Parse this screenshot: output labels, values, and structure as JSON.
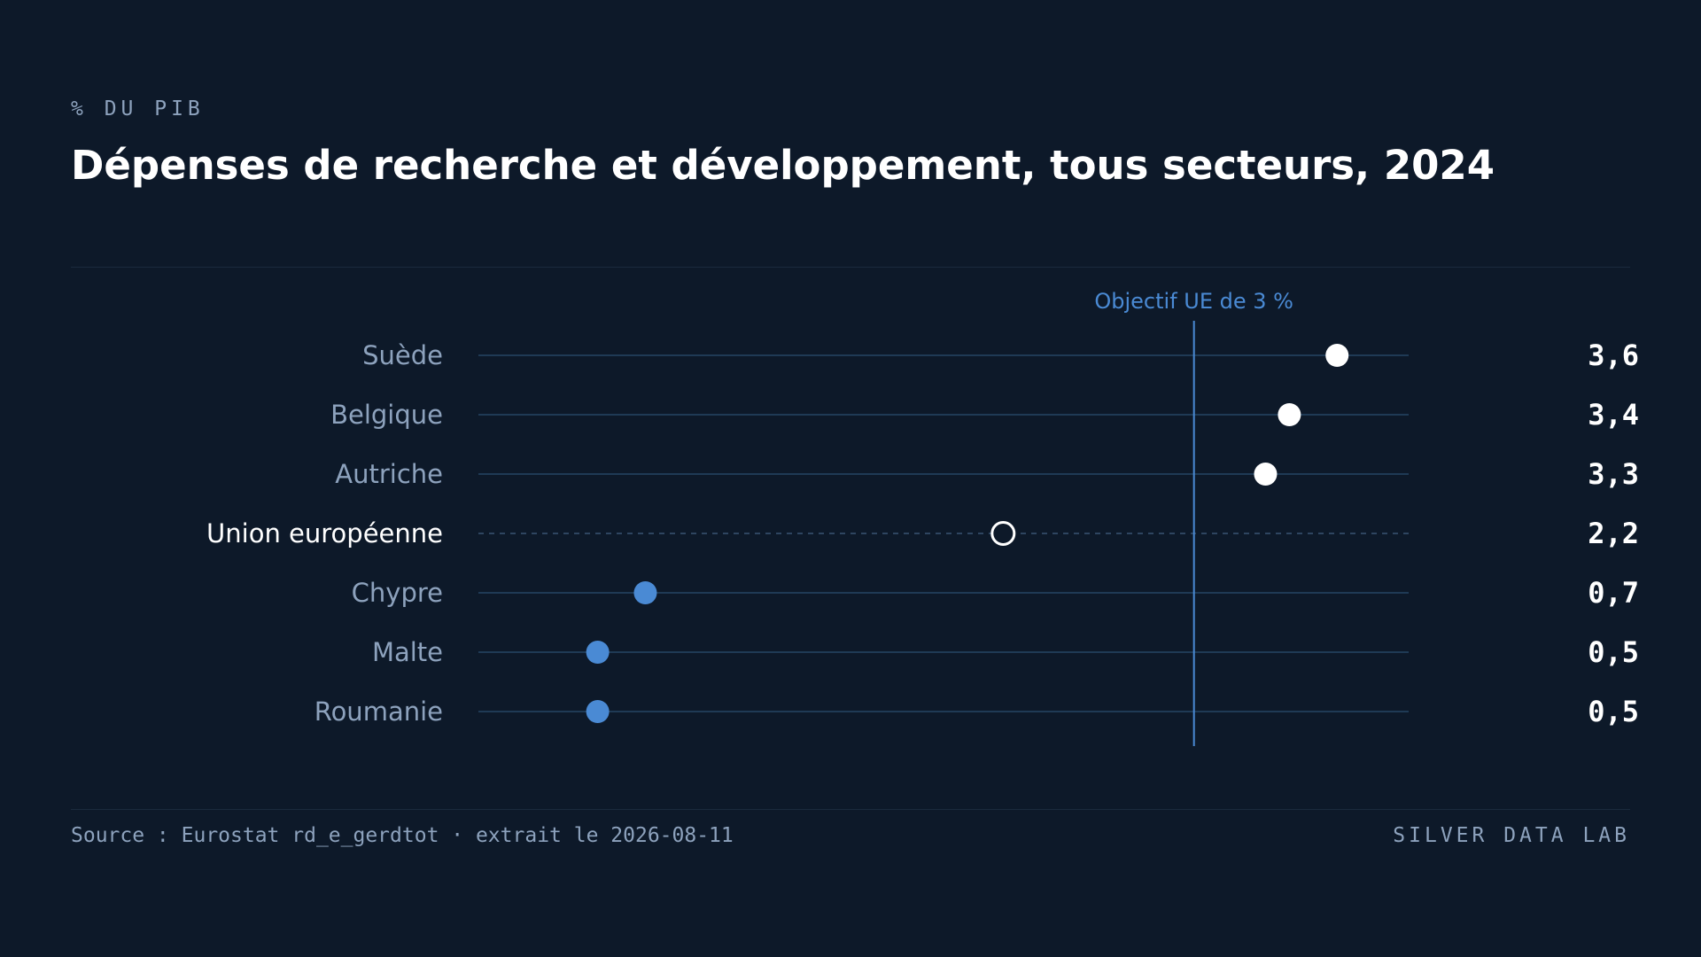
{
  "header": {
    "kicker": "% DU PIB",
    "title": "Dépenses de recherche et développement, tous secteurs, 2024"
  },
  "footer": {
    "source": "Source : Eurostat rd_e_gerdtot · extrait le 2026-08-11",
    "brand": "SILVER DATA LAB"
  },
  "colors": {
    "background": "#0d1929",
    "above_target": "#ffffff",
    "below_target": "#4a8ad4",
    "aggregate": "#ffffff",
    "target_line": "#4a8ad4",
    "row_line": "#1f3a55",
    "label": "#8da2bd",
    "label_highlight": "#ffffff"
  },
  "chart_data": {
    "type": "dot",
    "title": "Dépenses de recherche et développement, tous secteurs, 2024",
    "unit": "% du PIB",
    "xlim": [
      0,
      3.9
    ],
    "grid": false,
    "categories": [
      "Suède",
      "Belgique",
      "Autriche",
      "Union européenne",
      "Chypre",
      "Malte",
      "Roumanie"
    ],
    "values": [
      3.6,
      3.4,
      3.3,
      2.2,
      0.7,
      0.5,
      0.5
    ],
    "value_labels": [
      "3,6",
      "3,4",
      "3,3",
      "2,2",
      "0,7",
      "0,5",
      "0,5"
    ],
    "highlight": "Union européenne",
    "reference_line": {
      "value": 3,
      "label": "Objectif UE de 3 %"
    }
  }
}
